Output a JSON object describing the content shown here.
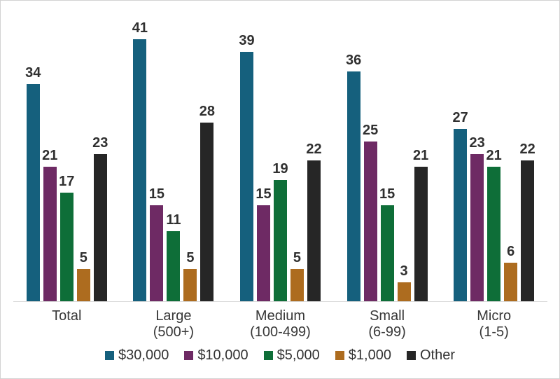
{
  "frame": {
    "background": "#ffffff",
    "border_color": "#d2d2d2",
    "axis_line_color": "#d9d9d9",
    "text_color": "#383838"
  },
  "chart_data": {
    "type": "bar",
    "title": "",
    "xlabel": "",
    "ylabel": "",
    "ylim": [
      0,
      41
    ],
    "grid": false,
    "value_labels": true,
    "legend_position": "bottom",
    "categories": [
      "Total",
      "Large\n(500+)",
      "Medium\n(100-499)",
      "Small\n(6-99)",
      "Micro\n(1-5)"
    ],
    "series": [
      {
        "name": "$30,000",
        "color": "#15607d",
        "values": [
          34,
          41,
          39,
          36,
          27
        ]
      },
      {
        "name": "$10,000",
        "color": "#6e2a64",
        "values": [
          21,
          15,
          15,
          25,
          23
        ]
      },
      {
        "name": "$5,000",
        "color": "#0e6e38",
        "values": [
          17,
          11,
          19,
          15,
          21
        ]
      },
      {
        "name": "$1,000",
        "color": "#ad6c1f",
        "values": [
          5,
          5,
          5,
          3,
          6
        ]
      },
      {
        "name": "Other",
        "color": "#262626",
        "values": [
          23,
          28,
          22,
          21,
          22
        ]
      }
    ]
  }
}
